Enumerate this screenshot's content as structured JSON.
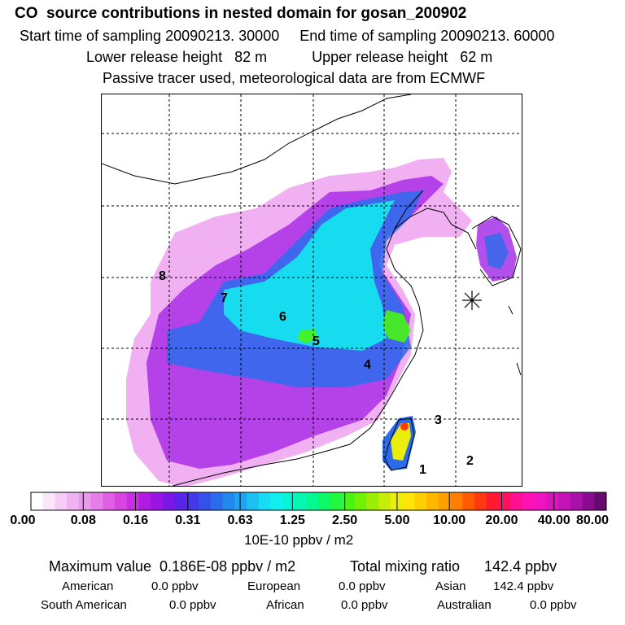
{
  "header": {
    "title": "CO  source contributions in nested domain for gosan_200902",
    "line1": "Start time of sampling 20090213. 30000     End time of sampling 20090213. 60000",
    "line2": "Lower release height   82 m           Upper release height   62 m",
    "line3": "Passive tracer used, meteorological data are from ECMWF"
  },
  "colorbar": {
    "tick_labels": [
      "0.00",
      "0.08",
      "0.16",
      "0.31",
      "0.63",
      "1.25",
      "2.50",
      "5.00",
      "10.00",
      "20.00",
      "40.00",
      "80.00"
    ],
    "colors": [
      "#ffffff",
      "#fbe5fb",
      "#f6cdf6",
      "#f0b2f2",
      "#eb98ee",
      "#e67ee9",
      "#de5fe4",
      "#d744e0",
      "#c92ee2",
      "#b11ae2",
      "#9a14e4",
      "#7a18e6",
      "#5a24e8",
      "#4438ea",
      "#3650ea",
      "#2a6cec",
      "#2288ee",
      "#1ea4f0",
      "#1cc0f2",
      "#18dcf4",
      "#10f0ee",
      "#08f4d6",
      "#06f6b4",
      "#06f890",
      "#0cf868",
      "#22f840",
      "#48f416",
      "#72f006",
      "#9cee06",
      "#c6ee08",
      "#eaee0a",
      "#ffe606",
      "#ffd000",
      "#ffb800",
      "#ffa000",
      "#ff8000",
      "#ff5a00",
      "#ff3a10",
      "#ff1a30",
      "#ff1060",
      "#ff1090",
      "#ff12b4",
      "#f014c0",
      "#dc14c0",
      "#c412b8",
      "#a812a8",
      "#8a0c90",
      "#680a70"
    ],
    "units": "10E-10 ppbv / m2"
  },
  "stats": {
    "max_value": "Maximum value  0.186E-08 ppbv / m2",
    "total": "Total mixing ratio      142.4 ppbv",
    "american_label": "American",
    "american_value": "0.0 ppbv",
    "european_label": "European",
    "european_value": "0.0 ppbv",
    "asian_label": "Asian",
    "asian_value": "142.4 ppbv",
    "south_american_label": "South American",
    "south_american_value": "0.0 ppbv",
    "african_label": "African",
    "african_value": "0.0 ppbv",
    "australian_label": "Australian",
    "australian_value": "0.0 ppbv"
  },
  "chart_data": {
    "type": "heatmap",
    "title": "CO  source contributions in nested domain for gosan_200902",
    "value_units": "10E-10 ppbv / m2",
    "color_scale_levels": [
      0.0,
      0.08,
      0.16,
      0.31,
      0.63,
      1.25,
      2.5,
      5.0,
      10.0,
      20.0,
      40.0,
      80.0
    ],
    "max_value": "0.186E-08 ppbv / m2",
    "total_mixing_ratio_ppbv": 142.4,
    "grid": true,
    "receptor": "gosan",
    "region_labels": [
      "1",
      "2",
      "3",
      "4",
      "5",
      "6",
      "7",
      "8"
    ]
  }
}
